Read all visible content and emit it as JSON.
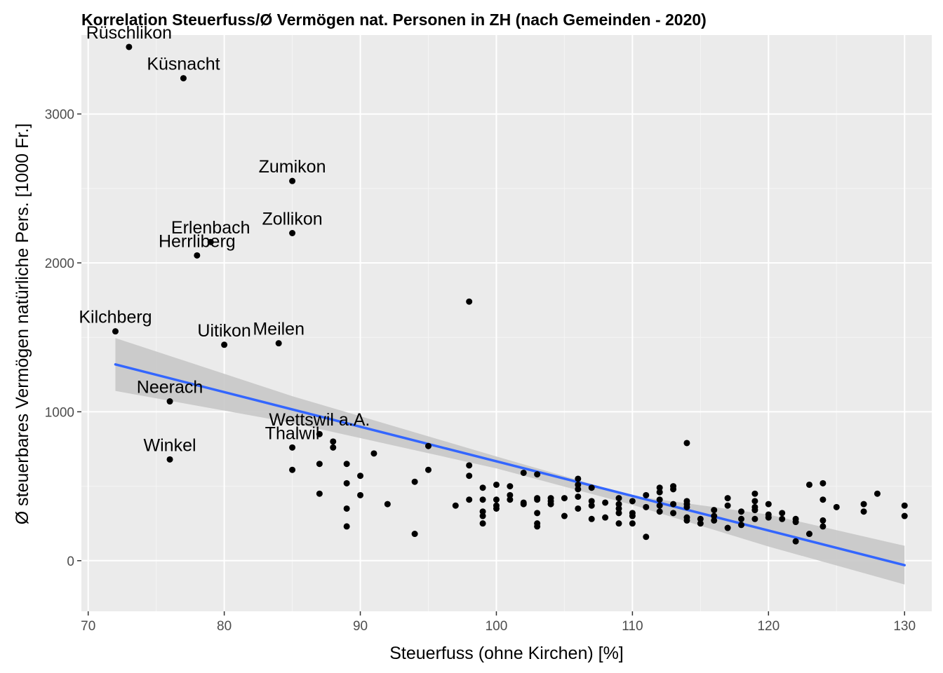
{
  "chart_data": {
    "type": "scatter",
    "title": "Korrelation Steuerfuss/Ø Vermögen nat. Personen in ZH (nach Gemeinden - 2020)",
    "xlabel": "Steuerfuss (ohne Kirchen) [%]",
    "ylabel": "Ø steuerbares Vermögen natürliche Pers. [1000 Fr.]",
    "xlim": [
      69.5,
      132
    ],
    "ylim": [
      -340,
      3530
    ],
    "x_ticks": [
      70,
      80,
      90,
      100,
      110,
      120,
      130
    ],
    "y_ticks": [
      0,
      1000,
      2000,
      3000
    ],
    "grid": true,
    "background": "#ebebeb",
    "point_color": "#000000",
    "trend_color": "#3366ff",
    "band_color": "#c8c8c8",
    "labeled_points": [
      {
        "label": "Rüschlikon",
        "x": 73,
        "y": 3450
      },
      {
        "label": "Küsnacht",
        "x": 77,
        "y": 3240
      },
      {
        "label": "Zumikon",
        "x": 85,
        "y": 2550
      },
      {
        "label": "Zollikon",
        "x": 85,
        "y": 2200
      },
      {
        "label": "Erlenbach",
        "x": 79,
        "y": 2140
      },
      {
        "label": "Herrliberg",
        "x": 78,
        "y": 2050
      },
      {
        "label": "Kilchberg",
        "x": 72,
        "y": 1540
      },
      {
        "label": "Uitikon",
        "x": 80,
        "y": 1450
      },
      {
        "label": "Meilen",
        "x": 84,
        "y": 1460
      },
      {
        "label": "Neerach",
        "x": 76,
        "y": 1070
      },
      {
        "label": "Winkel",
        "x": 76,
        "y": 680
      },
      {
        "label": "Wettswil a.A.",
        "x": 87,
        "y": 850
      },
      {
        "label": "Thalwil",
        "x": 85,
        "y": 760
      }
    ],
    "points": [
      [
        98,
        1740
      ],
      [
        114,
        790
      ],
      [
        87,
        650
      ],
      [
        87,
        450
      ],
      [
        85,
        610
      ],
      [
        88,
        800
      ],
      [
        88,
        760
      ],
      [
        89,
        650
      ],
      [
        89,
        520
      ],
      [
        89,
        350
      ],
      [
        89,
        230
      ],
      [
        90,
        570
      ],
      [
        90,
        440
      ],
      [
        91,
        720
      ],
      [
        92,
        380
      ],
      [
        94,
        530
      ],
      [
        94,
        180
      ],
      [
        95,
        770
      ],
      [
        95,
        610
      ],
      [
        97,
        370
      ],
      [
        98,
        640
      ],
      [
        98,
        570
      ],
      [
        98,
        410
      ],
      [
        99,
        490
      ],
      [
        99,
        410
      ],
      [
        99,
        330
      ],
      [
        99,
        300
      ],
      [
        99,
        250
      ],
      [
        100,
        510
      ],
      [
        100,
        410
      ],
      [
        100,
        370
      ],
      [
        100,
        350
      ],
      [
        101,
        500
      ],
      [
        101,
        440
      ],
      [
        101,
        410
      ],
      [
        102,
        590
      ],
      [
        102,
        390
      ],
      [
        102,
        380
      ],
      [
        103,
        580
      ],
      [
        103,
        420
      ],
      [
        103,
        410
      ],
      [
        103,
        320
      ],
      [
        103,
        250
      ],
      [
        103,
        230
      ],
      [
        104,
        420
      ],
      [
        104,
        400
      ],
      [
        104,
        380
      ],
      [
        105,
        420
      ],
      [
        105,
        300
      ],
      [
        106,
        550
      ],
      [
        106,
        510
      ],
      [
        106,
        480
      ],
      [
        106,
        430
      ],
      [
        106,
        350
      ],
      [
        107,
        490
      ],
      [
        107,
        400
      ],
      [
        107,
        370
      ],
      [
        107,
        280
      ],
      [
        108,
        390
      ],
      [
        108,
        290
      ],
      [
        109,
        420
      ],
      [
        109,
        380
      ],
      [
        109,
        350
      ],
      [
        109,
        320
      ],
      [
        109,
        250
      ],
      [
        110,
        400
      ],
      [
        110,
        320
      ],
      [
        110,
        300
      ],
      [
        110,
        250
      ],
      [
        111,
        440
      ],
      [
        111,
        360
      ],
      [
        111,
        160
      ],
      [
        112,
        490
      ],
      [
        112,
        460
      ],
      [
        112,
        410
      ],
      [
        112,
        370
      ],
      [
        112,
        330
      ],
      [
        113,
        500
      ],
      [
        113,
        480
      ],
      [
        113,
        380
      ],
      [
        113,
        320
      ],
      [
        114,
        400
      ],
      [
        114,
        380
      ],
      [
        114,
        360
      ],
      [
        114,
        290
      ],
      [
        114,
        270
      ],
      [
        115,
        280
      ],
      [
        115,
        250
      ],
      [
        116,
        340
      ],
      [
        116,
        300
      ],
      [
        116,
        270
      ],
      [
        117,
        420
      ],
      [
        117,
        370
      ],
      [
        117,
        220
      ],
      [
        118,
        330
      ],
      [
        118,
        280
      ],
      [
        118,
        240
      ],
      [
        119,
        450
      ],
      [
        119,
        400
      ],
      [
        119,
        360
      ],
      [
        119,
        340
      ],
      [
        119,
        280
      ],
      [
        120,
        380
      ],
      [
        120,
        310
      ],
      [
        120,
        290
      ],
      [
        121,
        320
      ],
      [
        121,
        280
      ],
      [
        122,
        280
      ],
      [
        122,
        260
      ],
      [
        122,
        130
      ],
      [
        123,
        510
      ],
      [
        123,
        180
      ],
      [
        124,
        520
      ],
      [
        124,
        410
      ],
      [
        124,
        270
      ],
      [
        124,
        230
      ],
      [
        125,
        360
      ],
      [
        127,
        380
      ],
      [
        127,
        330
      ],
      [
        128,
        450
      ],
      [
        130,
        370
      ],
      [
        130,
        300
      ]
    ],
    "trend": {
      "x": [
        72,
        130
      ],
      "y": [
        1318,
        -30
      ]
    },
    "band": {
      "x": [
        72,
        85,
        100,
        110,
        120,
        130
      ],
      "lower": [
        1140,
        925,
        620,
        375,
        95,
        -160
      ],
      "upper": [
        1495,
        1105,
        700,
        435,
        310,
        100
      ]
    }
  }
}
